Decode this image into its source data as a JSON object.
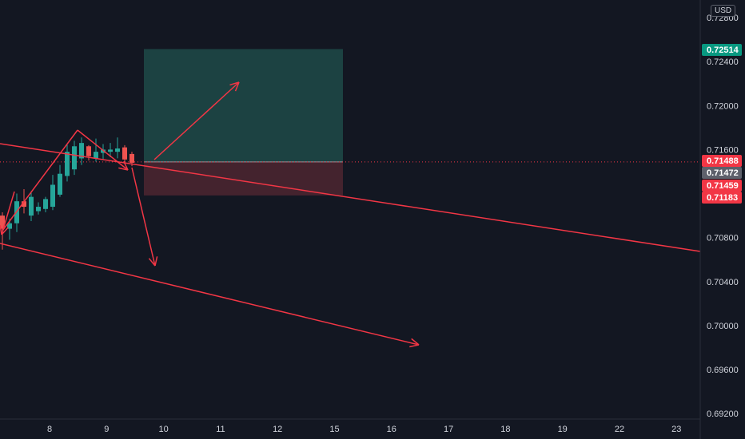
{
  "currency": "USD",
  "colors": {
    "background": "#131722",
    "axis_text": "#d1d4dc",
    "bull": "#26a69a",
    "bear": "#ef5350",
    "drawing": "#f23645",
    "target_zone": "#1e4a48",
    "stop_zone": "#4a2530",
    "grid_line": "#2a2e39"
  },
  "chart_data": {
    "type": "candlestick",
    "x_ticks": [
      "8",
      "9",
      "10",
      "11",
      "12",
      "15",
      "16",
      "17",
      "18",
      "19",
      "22",
      "23"
    ],
    "y_ticks": [
      "0.69200",
      "0.69600",
      "0.70000",
      "0.70400",
      "0.70800",
      "0.71200",
      "0.71600",
      "0.72000",
      "0.72400",
      "0.72800"
    ],
    "ylim": [
      0.6915,
      0.7296
    ],
    "candles": [
      {
        "o": 0.71,
        "h": 0.7103,
        "l": 0.7069,
        "c": 0.7088
      },
      {
        "o": 0.7088,
        "h": 0.7097,
        "l": 0.7078,
        "c": 0.7093
      },
      {
        "o": 0.7093,
        "h": 0.712,
        "l": 0.7085,
        "c": 0.7113
      },
      {
        "o": 0.7113,
        "h": 0.7124,
        "l": 0.7102,
        "c": 0.7108
      },
      {
        "o": 0.71,
        "h": 0.7122,
        "l": 0.7095,
        "c": 0.7117
      },
      {
        "o": 0.7104,
        "h": 0.7112,
        "l": 0.7101,
        "c": 0.7108
      },
      {
        "o": 0.7106,
        "h": 0.7117,
        "l": 0.7103,
        "c": 0.7115
      },
      {
        "o": 0.7108,
        "h": 0.7137,
        "l": 0.7105,
        "c": 0.7128
      },
      {
        "o": 0.7119,
        "h": 0.7146,
        "l": 0.7117,
        "c": 0.7138
      },
      {
        "o": 0.7136,
        "h": 0.7165,
        "l": 0.7131,
        "c": 0.7158
      },
      {
        "o": 0.7142,
        "h": 0.7168,
        "l": 0.7137,
        "c": 0.7163
      },
      {
        "o": 0.7152,
        "h": 0.7171,
        "l": 0.7146,
        "c": 0.7166
      },
      {
        "o": 0.7163,
        "h": 0.7164,
        "l": 0.715,
        "c": 0.7154
      },
      {
        "o": 0.7152,
        "h": 0.717,
        "l": 0.7149,
        "c": 0.7158
      },
      {
        "o": 0.7157,
        "h": 0.7165,
        "l": 0.7151,
        "c": 0.716
      },
      {
        "o": 0.7158,
        "h": 0.7166,
        "l": 0.7153,
        "c": 0.716
      },
      {
        "o": 0.7158,
        "h": 0.7171,
        "l": 0.7152,
        "c": 0.7161
      },
      {
        "o": 0.7162,
        "h": 0.7164,
        "l": 0.7148,
        "c": 0.7151
      },
      {
        "o": 0.7156,
        "h": 0.7158,
        "l": 0.7145,
        "c": 0.7148
      }
    ],
    "price_tags": [
      {
        "label": "0.72514",
        "value": 0.72514,
        "color": "#089981"
      },
      {
        "label": "0.71488",
        "value": 0.71488,
        "color": "#f23645"
      },
      {
        "label": "0.71472",
        "value": 0.71472,
        "color": "#5d606b"
      },
      {
        "label": "0.71459",
        "value": 0.71459,
        "color": "#f23645"
      },
      {
        "label": "0.71183",
        "value": 0.71183,
        "color": "#f23645"
      }
    ],
    "current_price": 0.71488,
    "position": {
      "entry": 0.71488,
      "target": 0.72514,
      "stop": 0.71183
    }
  }
}
